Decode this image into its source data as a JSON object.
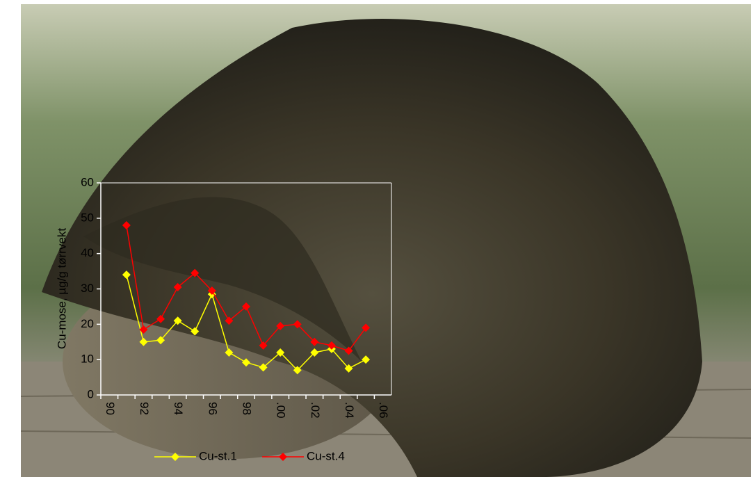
{
  "chart_data": {
    "type": "line",
    "y_label": "Cu-mose, µg/g tørrvekt",
    "categories": [
      "90",
      null,
      "92",
      null,
      "94",
      null,
      "96",
      null,
      "98",
      null,
      ".00",
      null,
      ".02",
      null,
      ".04",
      null,
      ".06"
    ],
    "series": [
      {
        "name": "Cu-st.1",
        "color": "#ffff00",
        "values": [
          null,
          34,
          15,
          15.5,
          21,
          18,
          28.5,
          12,
          9.2,
          7.8,
          12,
          7,
          12,
          13,
          7.5,
          10,
          null
        ]
      },
      {
        "name": "Cu-st.4",
        "color": "#ff0000",
        "values": [
          null,
          48,
          18.5,
          21.5,
          30.5,
          34.5,
          29.5,
          21,
          25,
          14,
          19.5,
          20,
          15,
          14,
          12.5,
          19,
          null
        ]
      }
    ],
    "ylim": [
      0,
      60
    ],
    "yticks": [
      0,
      10,
      20,
      30,
      40,
      50,
      60
    ],
    "legend": "bottom",
    "axis_color": "#ffffff"
  }
}
